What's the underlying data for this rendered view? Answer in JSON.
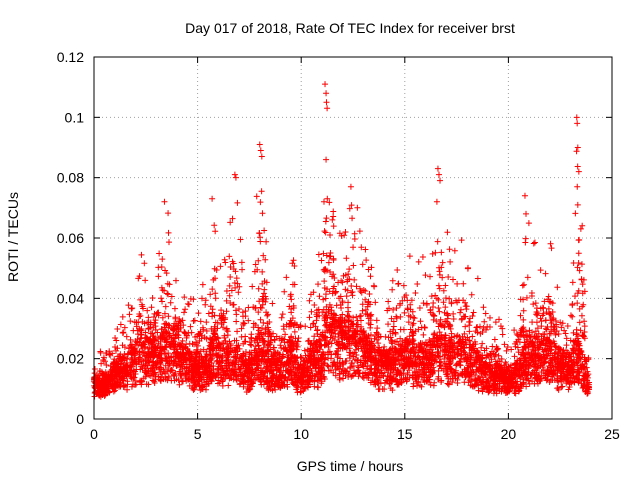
{
  "chart_data": {
    "type": "scatter",
    "title": "Day 017 of 2018, Rate Of TEC Index for receiver brst",
    "xlabel": "GPS time / hours",
    "ylabel": "ROTI / TECUs",
    "xlim": [
      0,
      25
    ],
    "ylim": [
      0,
      0.12
    ],
    "xticks": [
      0,
      5,
      10,
      15,
      20,
      25
    ],
    "xtick_labels": [
      "0",
      "5",
      "10",
      "15",
      "20",
      "25"
    ],
    "yticks": [
      0,
      0.02,
      0.04,
      0.06,
      0.08,
      0.1,
      0.12
    ],
    "ytick_labels": [
      "0",
      "0.02",
      "0.04",
      "0.06",
      "0.08",
      "0.1",
      "0.12"
    ],
    "grid": true,
    "marker": "plus",
    "color": "#ff0000",
    "x_data_range_hours": [
      0,
      23.9
    ],
    "series": [
      {
        "name": "ROTI",
        "envelope_x": [
          0,
          0.5,
          1,
          1.5,
          2,
          2.3,
          2.7,
          3,
          3.5,
          4,
          4.5,
          5,
          5.5,
          5.8,
          6.2,
          6.8,
          7.5,
          8,
          8.5,
          9,
          9.5,
          10,
          10.5,
          11,
          11.2,
          11.5,
          12,
          12.5,
          13,
          13.5,
          14,
          14.5,
          15,
          15.5,
          16,
          16.5,
          16.8,
          17.2,
          17.5,
          18,
          18.5,
          19,
          19.5,
          20,
          20.5,
          21,
          21.5,
          22,
          22.5,
          23,
          23.3,
          23.7,
          23.9
        ],
        "envelope_peak": [
          0.024,
          0.022,
          0.028,
          0.036,
          0.045,
          0.056,
          0.048,
          0.05,
          0.072,
          0.048,
          0.047,
          0.04,
          0.05,
          0.073,
          0.05,
          0.081,
          0.04,
          0.091,
          0.04,
          0.038,
          0.062,
          0.03,
          0.045,
          0.06,
          0.111,
          0.07,
          0.065,
          0.077,
          0.063,
          0.05,
          0.035,
          0.048,
          0.062,
          0.05,
          0.058,
          0.06,
          0.083,
          0.055,
          0.064,
          0.055,
          0.048,
          0.035,
          0.034,
          0.025,
          0.035,
          0.074,
          0.05,
          0.063,
          0.04,
          0.03,
          0.1,
          0.045,
          0.02
        ],
        "envelope_typical": [
          0.012,
          0.01,
          0.014,
          0.016,
          0.018,
          0.022,
          0.02,
          0.02,
          0.024,
          0.02,
          0.018,
          0.015,
          0.017,
          0.022,
          0.018,
          0.02,
          0.015,
          0.022,
          0.016,
          0.016,
          0.02,
          0.013,
          0.018,
          0.02,
          0.028,
          0.026,
          0.024,
          0.025,
          0.022,
          0.018,
          0.017,
          0.018,
          0.02,
          0.018,
          0.019,
          0.02,
          0.024,
          0.019,
          0.021,
          0.019,
          0.017,
          0.014,
          0.014,
          0.012,
          0.015,
          0.022,
          0.02,
          0.02,
          0.017,
          0.015,
          0.022,
          0.014,
          0.01
        ],
        "outliers": [
          [
            3.4,
            0.072
          ],
          [
            5.7,
            0.073
          ],
          [
            6.8,
            0.081
          ],
          [
            6.85,
            0.08
          ],
          [
            8.0,
            0.091
          ],
          [
            8.05,
            0.089
          ],
          [
            8.1,
            0.087
          ],
          [
            11.15,
            0.111
          ],
          [
            11.2,
            0.108
          ],
          [
            11.22,
            0.105
          ],
          [
            11.25,
            0.103
          ],
          [
            11.2,
            0.086
          ],
          [
            11.1,
            0.072
          ],
          [
            12.4,
            0.077
          ],
          [
            16.6,
            0.083
          ],
          [
            16.65,
            0.081
          ],
          [
            16.7,
            0.079
          ],
          [
            16.55,
            0.072
          ],
          [
            20.8,
            0.074
          ],
          [
            20.85,
            0.068
          ],
          [
            23.3,
            0.1
          ],
          [
            23.32,
            0.098
          ],
          [
            23.35,
            0.09
          ],
          [
            23.4,
            0.082
          ],
          [
            23.35,
            0.071
          ]
        ]
      }
    ]
  }
}
